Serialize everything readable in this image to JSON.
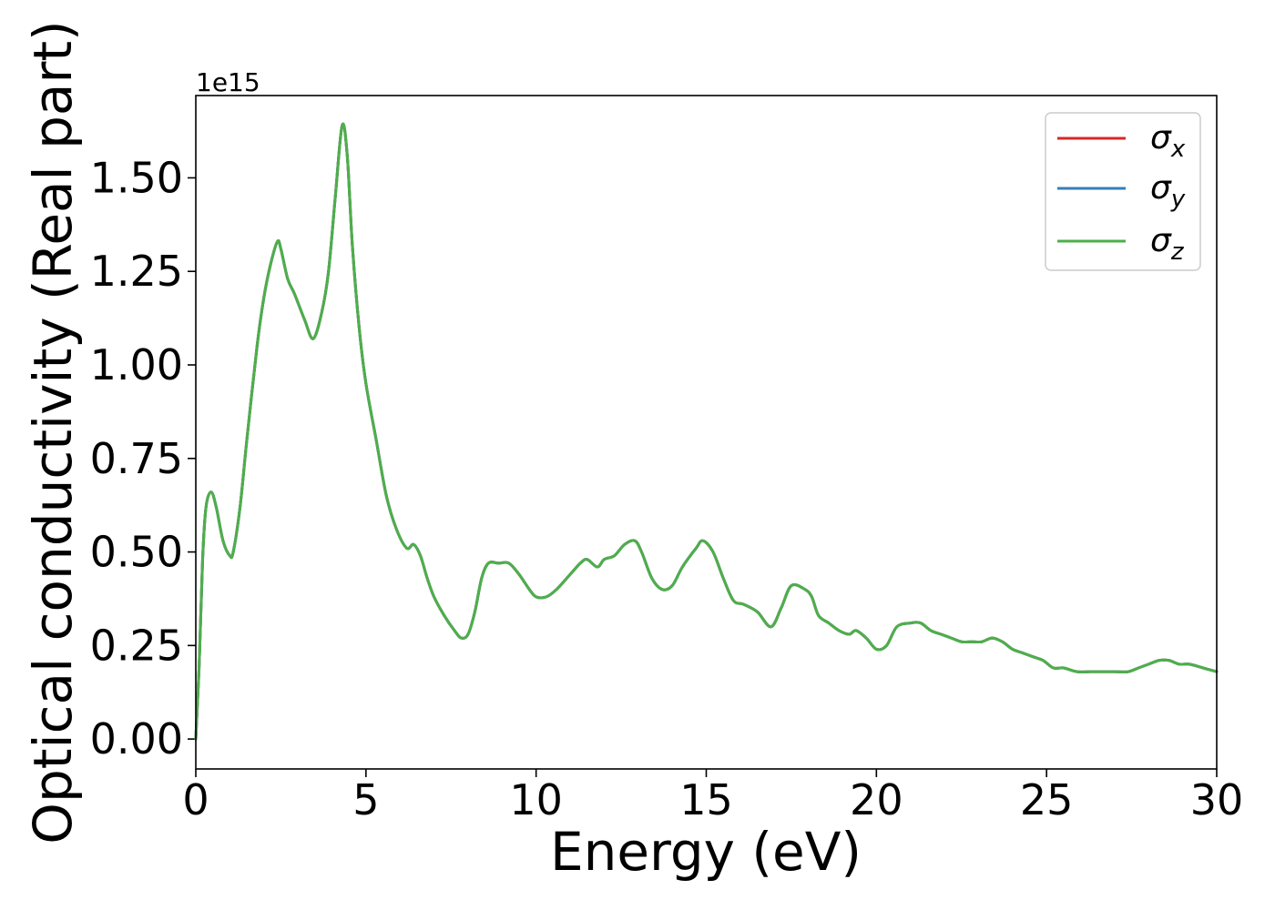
{
  "chart_data": {
    "type": "line",
    "title": "",
    "xlabel": "Energy (eV)",
    "ylabel": "Optical conductivity (Real part)",
    "y_offset_text": "1e15",
    "y_scale": 1000000000000000.0,
    "xlim": [
      0,
      30
    ],
    "ylim": [
      -0.08,
      1.72
    ],
    "xticks": [
      0,
      5,
      10,
      15,
      20,
      25,
      30
    ],
    "yticks": [
      0.0,
      0.25,
      0.5,
      0.75,
      1.0,
      1.25,
      1.5
    ],
    "ytick_labels": [
      "0.00",
      "0.25",
      "0.50",
      "0.75",
      "1.00",
      "1.25",
      "1.50"
    ],
    "grid": false,
    "legend_position": "top-right",
    "legend": [
      {
        "symbol": "σ",
        "subscript": "x",
        "color": "#d62728"
      },
      {
        "symbol": "σ",
        "subscript": "y",
        "color": "#377eb8"
      },
      {
        "symbol": "σ",
        "subscript": "z",
        "color": "#4daf4a"
      }
    ],
    "series": [
      {
        "name": "σx",
        "color": "#d62728",
        "x": [
          0.0,
          0.1,
          0.2,
          0.3,
          0.45,
          0.6,
          0.8,
          1.0,
          1.1,
          1.3,
          1.5,
          1.8,
          2.0,
          2.2,
          2.4,
          2.5,
          2.7,
          2.9,
          3.2,
          3.45,
          3.7,
          3.9,
          4.1,
          4.3,
          4.45,
          4.6,
          4.8,
          5.0,
          5.3,
          5.6,
          5.9,
          6.2,
          6.4,
          6.6,
          6.8,
          7.0,
          7.3,
          7.6,
          7.8,
          8.0,
          8.2,
          8.4,
          8.6,
          8.9,
          9.2,
          9.5,
          9.8,
          10.0,
          10.3,
          10.6,
          11.0,
          11.3,
          11.5,
          11.8,
          12.0,
          12.3,
          12.6,
          12.9,
          13.1,
          13.4,
          13.7,
          14.0,
          14.3,
          14.7,
          14.9,
          15.2,
          15.5,
          15.8,
          16.1,
          16.5,
          16.9,
          17.2,
          17.5,
          17.9,
          18.1,
          18.3,
          18.6,
          18.9,
          19.2,
          19.4,
          19.7,
          20.0,
          20.3,
          20.6,
          21.0,
          21.3,
          21.6,
          21.9,
          22.2,
          22.5,
          22.8,
          23.1,
          23.4,
          23.7,
          24.0,
          24.3,
          24.6,
          24.9,
          25.2,
          25.5,
          25.9,
          26.3,
          26.6,
          27.0,
          27.4,
          27.7,
          28.0,
          28.3,
          28.6,
          28.9,
          29.2,
          29.6,
          30.0
        ],
        "y": [
          0.0,
          0.2,
          0.48,
          0.62,
          0.66,
          0.62,
          0.53,
          0.49,
          0.5,
          0.62,
          0.8,
          1.05,
          1.18,
          1.27,
          1.33,
          1.31,
          1.23,
          1.19,
          1.12,
          1.07,
          1.14,
          1.25,
          1.45,
          1.64,
          1.56,
          1.32,
          1.1,
          0.95,
          0.8,
          0.65,
          0.56,
          0.51,
          0.52,
          0.49,
          0.43,
          0.38,
          0.33,
          0.29,
          0.27,
          0.28,
          0.34,
          0.43,
          0.47,
          0.47,
          0.47,
          0.44,
          0.4,
          0.38,
          0.38,
          0.4,
          0.44,
          0.47,
          0.48,
          0.46,
          0.48,
          0.49,
          0.52,
          0.53,
          0.5,
          0.43,
          0.4,
          0.41,
          0.46,
          0.51,
          0.53,
          0.5,
          0.43,
          0.37,
          0.36,
          0.34,
          0.3,
          0.35,
          0.41,
          0.4,
          0.38,
          0.33,
          0.31,
          0.29,
          0.28,
          0.29,
          0.27,
          0.24,
          0.25,
          0.3,
          0.31,
          0.31,
          0.29,
          0.28,
          0.27,
          0.26,
          0.26,
          0.26,
          0.27,
          0.26,
          0.24,
          0.23,
          0.22,
          0.21,
          0.19,
          0.19,
          0.18,
          0.18,
          0.18,
          0.18,
          0.18,
          0.19,
          0.2,
          0.21,
          0.21,
          0.2,
          0.2,
          0.19,
          0.18
        ]
      },
      {
        "name": "σy",
        "color": "#377eb8",
        "x": [
          0.0,
          0.1,
          0.2,
          0.3,
          0.45,
          0.6,
          0.8,
          1.0,
          1.1,
          1.3,
          1.5,
          1.8,
          2.0,
          2.2,
          2.4,
          2.5,
          2.7,
          2.9,
          3.2,
          3.45,
          3.7,
          3.9,
          4.1,
          4.3,
          4.45,
          4.6,
          4.8,
          5.0,
          5.3,
          5.6,
          5.9,
          6.2,
          6.4,
          6.6,
          6.8,
          7.0,
          7.3,
          7.6,
          7.8,
          8.0,
          8.2,
          8.4,
          8.6,
          8.9,
          9.2,
          9.5,
          9.8,
          10.0,
          10.3,
          10.6,
          11.0,
          11.3,
          11.5,
          11.8,
          12.0,
          12.3,
          12.6,
          12.9,
          13.1,
          13.4,
          13.7,
          14.0,
          14.3,
          14.7,
          14.9,
          15.2,
          15.5,
          15.8,
          16.1,
          16.5,
          16.9,
          17.2,
          17.5,
          17.9,
          18.1,
          18.3,
          18.6,
          18.9,
          19.2,
          19.4,
          19.7,
          20.0,
          20.3,
          20.6,
          21.0,
          21.3,
          21.6,
          21.9,
          22.2,
          22.5,
          22.8,
          23.1,
          23.4,
          23.7,
          24.0,
          24.3,
          24.6,
          24.9,
          25.2,
          25.5,
          25.9,
          26.3,
          26.6,
          27.0,
          27.4,
          27.7,
          28.0,
          28.3,
          28.6,
          28.9,
          29.2,
          29.6,
          30.0
        ],
        "y": [
          0.0,
          0.2,
          0.48,
          0.62,
          0.66,
          0.62,
          0.53,
          0.49,
          0.5,
          0.62,
          0.8,
          1.05,
          1.18,
          1.27,
          1.33,
          1.31,
          1.23,
          1.19,
          1.12,
          1.07,
          1.14,
          1.25,
          1.45,
          1.64,
          1.56,
          1.32,
          1.1,
          0.95,
          0.8,
          0.65,
          0.56,
          0.51,
          0.52,
          0.49,
          0.43,
          0.38,
          0.33,
          0.29,
          0.27,
          0.28,
          0.34,
          0.43,
          0.47,
          0.47,
          0.47,
          0.44,
          0.4,
          0.38,
          0.38,
          0.4,
          0.44,
          0.47,
          0.48,
          0.46,
          0.48,
          0.49,
          0.52,
          0.53,
          0.5,
          0.43,
          0.4,
          0.41,
          0.46,
          0.51,
          0.53,
          0.5,
          0.43,
          0.37,
          0.36,
          0.34,
          0.3,
          0.35,
          0.41,
          0.4,
          0.38,
          0.33,
          0.31,
          0.29,
          0.28,
          0.29,
          0.27,
          0.24,
          0.25,
          0.3,
          0.31,
          0.31,
          0.29,
          0.28,
          0.27,
          0.26,
          0.26,
          0.26,
          0.27,
          0.26,
          0.24,
          0.23,
          0.22,
          0.21,
          0.19,
          0.19,
          0.18,
          0.18,
          0.18,
          0.18,
          0.18,
          0.19,
          0.2,
          0.21,
          0.21,
          0.2,
          0.2,
          0.19,
          0.18
        ]
      },
      {
        "name": "σz",
        "color": "#4daf4a",
        "x": [
          0.0,
          0.1,
          0.2,
          0.3,
          0.45,
          0.6,
          0.8,
          1.0,
          1.1,
          1.3,
          1.5,
          1.8,
          2.0,
          2.2,
          2.4,
          2.5,
          2.7,
          2.9,
          3.2,
          3.45,
          3.7,
          3.9,
          4.1,
          4.3,
          4.45,
          4.6,
          4.8,
          5.0,
          5.3,
          5.6,
          5.9,
          6.2,
          6.4,
          6.6,
          6.8,
          7.0,
          7.3,
          7.6,
          7.8,
          8.0,
          8.2,
          8.4,
          8.6,
          8.9,
          9.2,
          9.5,
          9.8,
          10.0,
          10.3,
          10.6,
          11.0,
          11.3,
          11.5,
          11.8,
          12.0,
          12.3,
          12.6,
          12.9,
          13.1,
          13.4,
          13.7,
          14.0,
          14.3,
          14.7,
          14.9,
          15.2,
          15.5,
          15.8,
          16.1,
          16.5,
          16.9,
          17.2,
          17.5,
          17.9,
          18.1,
          18.3,
          18.6,
          18.9,
          19.2,
          19.4,
          19.7,
          20.0,
          20.3,
          20.6,
          21.0,
          21.3,
          21.6,
          21.9,
          22.2,
          22.5,
          22.8,
          23.1,
          23.4,
          23.7,
          24.0,
          24.3,
          24.6,
          24.9,
          25.2,
          25.5,
          25.9,
          26.3,
          26.6,
          27.0,
          27.4,
          27.7,
          28.0,
          28.3,
          28.6,
          28.9,
          29.2,
          29.6,
          30.0
        ],
        "y": [
          0.0,
          0.2,
          0.48,
          0.62,
          0.66,
          0.62,
          0.53,
          0.49,
          0.5,
          0.62,
          0.8,
          1.05,
          1.18,
          1.27,
          1.33,
          1.31,
          1.23,
          1.19,
          1.12,
          1.07,
          1.14,
          1.25,
          1.45,
          1.64,
          1.56,
          1.32,
          1.1,
          0.95,
          0.8,
          0.65,
          0.56,
          0.51,
          0.52,
          0.49,
          0.43,
          0.38,
          0.33,
          0.29,
          0.27,
          0.28,
          0.34,
          0.43,
          0.47,
          0.47,
          0.47,
          0.44,
          0.4,
          0.38,
          0.38,
          0.4,
          0.44,
          0.47,
          0.48,
          0.46,
          0.48,
          0.49,
          0.52,
          0.53,
          0.5,
          0.43,
          0.4,
          0.41,
          0.46,
          0.51,
          0.53,
          0.5,
          0.43,
          0.37,
          0.36,
          0.34,
          0.3,
          0.35,
          0.41,
          0.4,
          0.38,
          0.33,
          0.31,
          0.29,
          0.28,
          0.29,
          0.27,
          0.24,
          0.25,
          0.3,
          0.31,
          0.31,
          0.29,
          0.28,
          0.27,
          0.26,
          0.26,
          0.26,
          0.27,
          0.26,
          0.24,
          0.23,
          0.22,
          0.21,
          0.19,
          0.19,
          0.18,
          0.18,
          0.18,
          0.18,
          0.18,
          0.19,
          0.2,
          0.21,
          0.21,
          0.2,
          0.2,
          0.19,
          0.18
        ]
      }
    ]
  }
}
